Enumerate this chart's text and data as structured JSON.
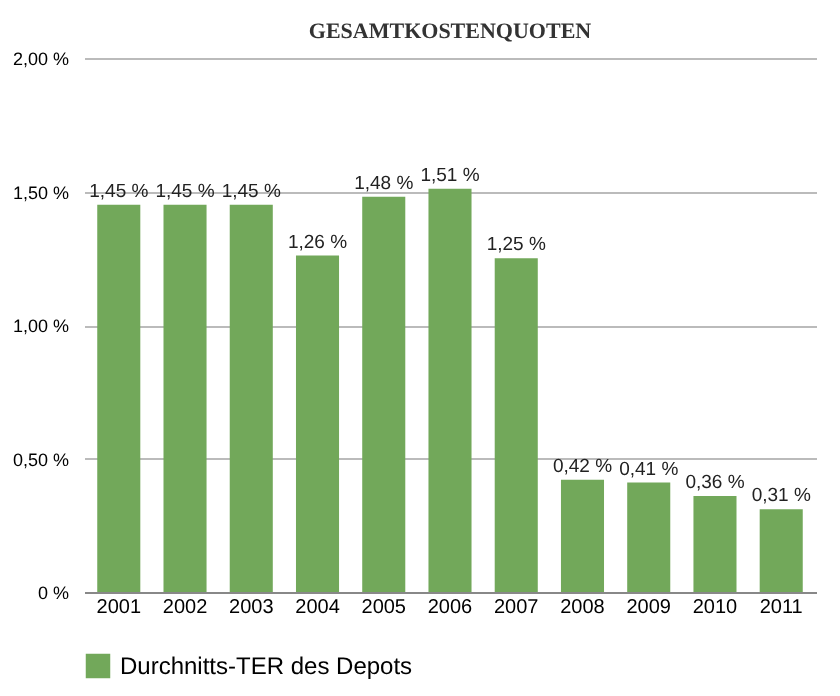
{
  "chart_data": {
    "type": "bar",
    "title": "GESAMTKOSTENQUOTEN",
    "categories": [
      "2001",
      "2002",
      "2003",
      "2004",
      "2005",
      "2006",
      "2007",
      "2008",
      "2009",
      "2010",
      "2011"
    ],
    "series": [
      {
        "name": "Durchnitts-TER des Depots",
        "color": "#72a85a",
        "values": [
          1.45,
          1.45,
          1.45,
          1.26,
          1.48,
          1.51,
          1.25,
          0.42,
          0.41,
          0.36,
          0.31
        ],
        "value_labels": [
          "1,45 %",
          "1,45 %",
          "1,45 %",
          "1,26 %",
          "1,48 %",
          "1,51 %",
          "1,25 %",
          "0,42 %",
          "0,41 %",
          "0,36 %",
          "0,31 %"
        ]
      }
    ],
    "ylim": [
      0,
      2
    ],
    "yticks": [
      {
        "value": 0,
        "label": "0 %"
      },
      {
        "value": 0.5,
        "label": "0,50 %"
      },
      {
        "value": 1,
        "label": "1,00 %"
      },
      {
        "value": 1.5,
        "label": "1,50 %"
      },
      {
        "value": 2,
        "label": "2,00 %"
      }
    ],
    "grid": "y",
    "legend": "bottom"
  }
}
